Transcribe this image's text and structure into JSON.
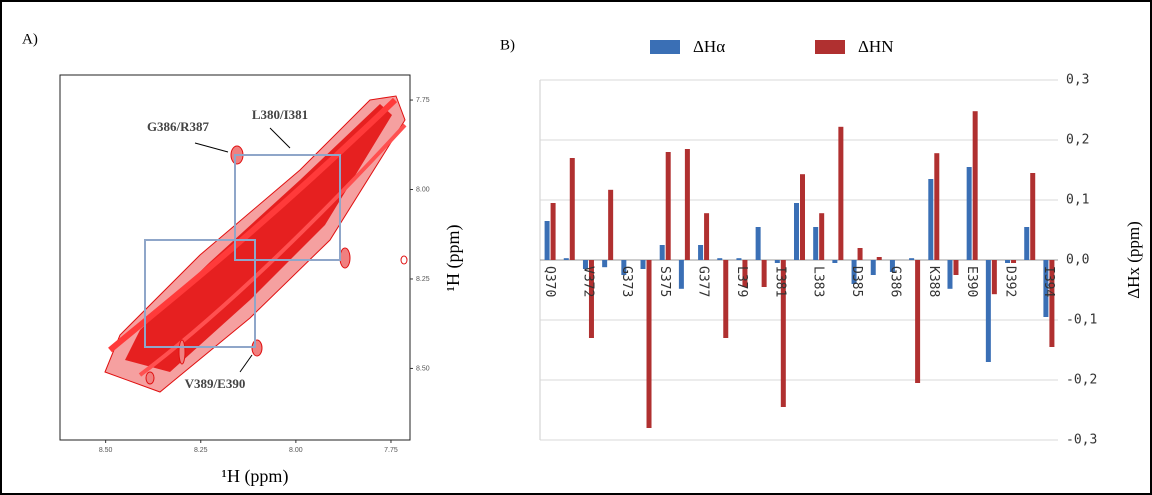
{
  "chart_data": [
    {
      "type": "spectrum",
      "panel_label": "A)",
      "x_label": "¹H (ppm)",
      "y_label": "¹H (ppm)",
      "xlim": [
        8.62,
        7.7
      ],
      "xticks": [
        {
          "value": 8.5,
          "label": "8.50"
        },
        {
          "value": 8.25,
          "label": "8.25"
        },
        {
          "value": 8.0,
          "label": "8.00"
        },
        {
          "value": 7.75,
          "label": "7.75"
        }
      ],
      "ylim": [
        7.68,
        8.7
      ],
      "yticks": [
        {
          "value": 7.75,
          "label": "7.75"
        },
        {
          "value": 8.0,
          "label": "8.00"
        },
        {
          "value": 8.25,
          "label": "8.25"
        },
        {
          "value": 8.5,
          "label": "8.50"
        }
      ],
      "annotations": [
        "G386/R387",
        "L380/I381",
        "V389/E390"
      ]
    },
    {
      "type": "bar",
      "panel_label": "B)",
      "y_label": "ΔHx (ppm)",
      "categories": [
        "Q370",
        null,
        "V372",
        null,
        "G373",
        null,
        "S375",
        null,
        "G377",
        null,
        "L379",
        null,
        "I381",
        null,
        "L383",
        null,
        "D385",
        null,
        "G386",
        null,
        "K388",
        null,
        "E390",
        null,
        "D392",
        null,
        "I394"
      ],
      "series": [
        {
          "name": "ΔHα",
          "color": "#3a6fb5",
          "values": [
            0.065,
            0.003,
            -0.015,
            -0.012,
            -0.025,
            -0.015,
            0.025,
            -0.048,
            0.025,
            0.003,
            0.003,
            0.055,
            -0.005,
            0.095,
            0.055,
            -0.005,
            -0.04,
            -0.025,
            -0.02,
            0.003,
            0.135,
            -0.048,
            0.155,
            -0.17,
            -0.005,
            0.055,
            -0.095
          ]
        },
        {
          "name": "ΔHN",
          "color": "#b03030",
          "values": [
            0.095,
            0.17,
            -0.13,
            0.117,
            0,
            -0.28,
            0.18,
            0.185,
            0.078,
            -0.13,
            -0.045,
            -0.045,
            -0.245,
            0.143,
            0.078,
            0.222,
            0.02,
            0.005,
            0,
            -0.205,
            0.178,
            -0.025,
            0.248,
            -0.057,
            -0.005,
            0.145,
            -0.145
          ]
        }
      ],
      "ylim": [
        -0.3,
        0.3
      ],
      "yticks": [
        {
          "value": 0.3,
          "label": "0,3"
        },
        {
          "value": 0.2,
          "label": "0,2"
        },
        {
          "value": 0.1,
          "label": "0,1"
        },
        {
          "value": 0,
          "label": "0,0"
        },
        {
          "value": -0.1,
          "label": "-0,1"
        },
        {
          "value": -0.2,
          "label": "-0,2"
        },
        {
          "value": -0.3,
          "label": "-0,3"
        }
      ],
      "grid": true
    }
  ]
}
